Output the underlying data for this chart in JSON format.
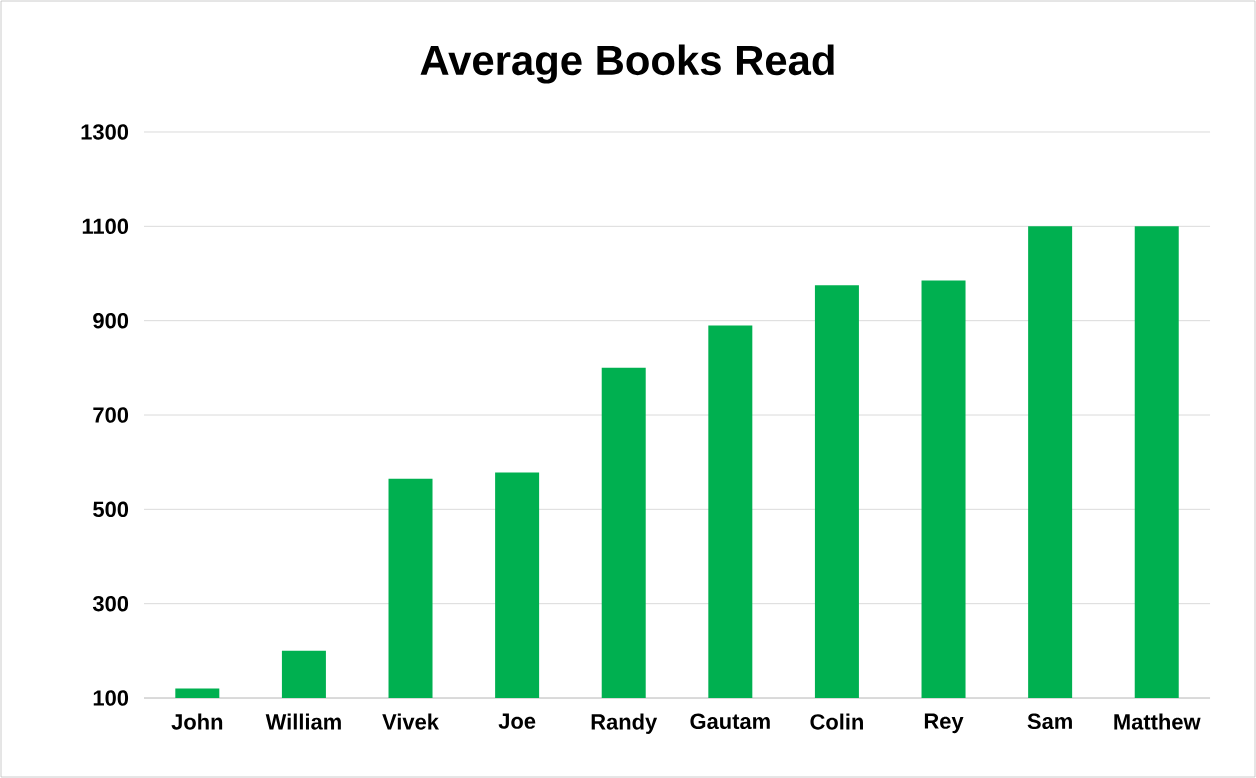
{
  "chart_data": {
    "type": "bar",
    "title": "Average Books Read",
    "categories": [
      "John",
      "William",
      "Vivek",
      "Joe",
      "Randy",
      "Gautam",
      "Colin",
      "Rey",
      "Sam",
      "Matthew"
    ],
    "values": [
      120,
      200,
      565,
      578,
      800,
      890,
      975,
      985,
      1100,
      1100
    ],
    "color": "#00b050",
    "ylim": [
      100,
      1300
    ],
    "yticks": [
      100,
      300,
      500,
      700,
      900,
      1100,
      1300
    ],
    "grid": "y"
  }
}
